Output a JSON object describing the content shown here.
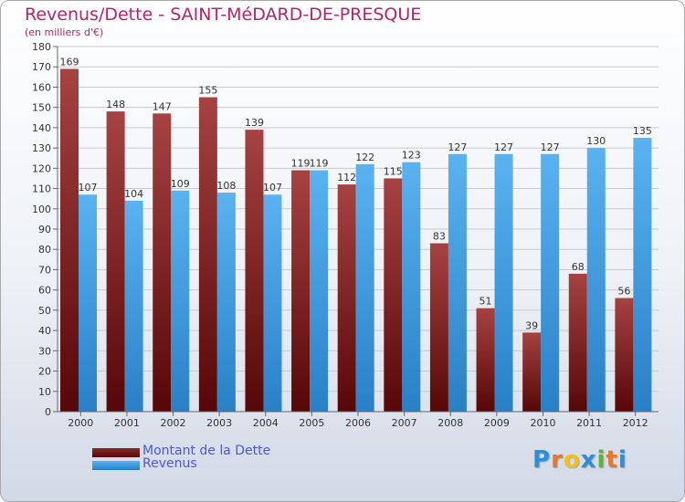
{
  "header": {
    "title": "Revenus/Dette - SAINT-MéDARD-DE-PRESQUE",
    "subtitle": "(en milliers d'€)"
  },
  "legend": {
    "debt_label": "Montant de la Dette",
    "revenue_label": "Revenus"
  },
  "logo": {
    "text": "Proxiti",
    "letters": [
      "P",
      "r",
      "o",
      "x",
      "i",
      "t",
      "i"
    ],
    "letter_colors": [
      "#2d8fd6",
      "#e8762b",
      "#f2c21b",
      "#2d8fd6",
      "#59b731",
      "#e8762b",
      "#2d8fd6"
    ]
  },
  "colors": {
    "debt_dark": "#5e0a0a",
    "debt_light": "#9b3a3a",
    "revenue_dark": "#2c86cf",
    "revenue_light": "#5bb0ee",
    "title": "#b5236a",
    "legend_text": "#4b57d8"
  },
  "chart_data": {
    "type": "bar",
    "categories": [
      "2000",
      "2001",
      "2002",
      "2003",
      "2004",
      "2005",
      "2006",
      "2007",
      "2008",
      "2009",
      "2010",
      "2011",
      "2012"
    ],
    "series": [
      {
        "name": "Montant de la Dette",
        "values": [
          169,
          148,
          147,
          155,
          139,
          119,
          112,
          115,
          83,
          51,
          39,
          68,
          56
        ]
      },
      {
        "name": "Revenus",
        "values": [
          107,
          104,
          109,
          108,
          107,
          119,
          122,
          123,
          127,
          127,
          127,
          130,
          135
        ]
      }
    ],
    "ylim": [
      0,
      180
    ],
    "ytick_step": 10,
    "title": "Revenus/Dette - SAINT-MéDARD-DE-PRESQUE",
    "ylabel": "(en milliers d'€)",
    "grid": true,
    "legend_position": "bottom-left"
  }
}
